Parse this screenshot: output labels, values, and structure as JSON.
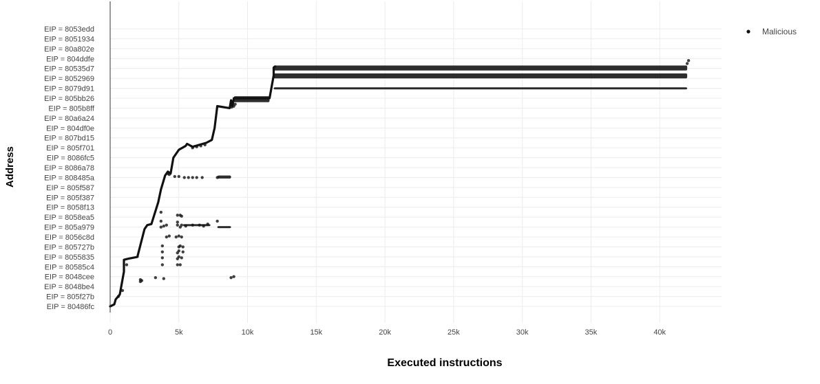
{
  "chart_data": {
    "type": "scatter",
    "title": "",
    "xlabel": "Executed instructions",
    "ylabel": "Address",
    "xlim": [
      0,
      44500
    ],
    "x_ticks": [
      0,
      5000,
      10000,
      15000,
      20000,
      25000,
      30000,
      35000,
      40000
    ],
    "x_tick_labels": [
      "0",
      "5k",
      "10k",
      "15k",
      "20k",
      "25k",
      "30k",
      "35k",
      "40k"
    ],
    "y_categories": [
      "EIP = 80486fc",
      "EIP = 805f27b",
      "EIP = 8048be4",
      "EIP = 8048cee",
      "EIP = 80585c4",
      "EIP = 8055835",
      "EIP = 805727b",
      "EIP = 8056c8d",
      "EIP = 805a979",
      "EIP = 8058ea5",
      "EIP = 8058f13",
      "EIP = 805f387",
      "EIP = 805f587",
      "EIP = 808485a",
      "EIP = 8086a78",
      "EIP = 8086fc5",
      "EIP = 805f701",
      "EIP = 807bd15",
      "EIP = 804df0e",
      "EIP = 80a6a24",
      "EIP = 805b8ff",
      "EIP = 805bb26",
      "EIP = 8079d91",
      "EIP = 8052969",
      "EIP = 80535d7",
      "EIP = 804ddfe",
      "EIP = 80a802e",
      "EIP = 8051934",
      "EIP = 8053edd"
    ],
    "grid": true,
    "legend_position": "top-right",
    "series": [
      {
        "name": "Malicious",
        "color": "#111111",
        "trace": [
          [
            0,
            0
          ],
          [
            300,
            0.2
          ],
          [
            400,
            0.7
          ],
          [
            700,
            1.2
          ],
          [
            1000,
            3.5
          ],
          [
            1000,
            4.7
          ],
          [
            1300,
            4.8
          ],
          [
            2000,
            5.0
          ],
          [
            2000,
            5.1
          ],
          [
            2500,
            7.8
          ],
          [
            2700,
            8.2
          ],
          [
            3000,
            8.3
          ],
          [
            3500,
            10.5
          ],
          [
            3700,
            11.8
          ],
          [
            4000,
            13.2
          ],
          [
            4200,
            13.6
          ],
          [
            4400,
            13.4
          ],
          [
            4600,
            15.0
          ],
          [
            5000,
            15.8
          ],
          [
            5500,
            16.2
          ],
          [
            5600,
            16.4
          ],
          [
            6000,
            16.1
          ],
          [
            7000,
            16.5
          ],
          [
            7400,
            16.8
          ],
          [
            7600,
            18.0
          ],
          [
            7800,
            20.2
          ],
          [
            8700,
            20.0
          ],
          [
            8800,
            20.8
          ],
          [
            8900,
            20.2
          ],
          [
            9000,
            21.0
          ],
          [
            11600,
            21.0
          ],
          [
            11900,
            23.3
          ],
          [
            11900,
            24.1
          ],
          [
            12000,
            24.2
          ]
        ],
        "bands": [
          {
            "x_start": 11900,
            "x_end": 42000,
            "y_from": 23.8,
            "y_to": 24.3
          },
          {
            "x_start": 11900,
            "x_end": 42000,
            "y_from": 23.0,
            "y_to": 23.5
          },
          {
            "x_start": 11900,
            "x_end": 42000,
            "y_from": 21.9,
            "y_to": 22.1
          },
          {
            "x_start": 9000,
            "x_end": 11600,
            "y_from": 20.6,
            "y_to": 21.2
          },
          {
            "x_start": 7800,
            "x_end": 8800,
            "y_from": 12.9,
            "y_to": 13.2
          },
          {
            "x_start": 5300,
            "x_end": 7300,
            "y_from": 8.2,
            "y_to": 8.3
          },
          {
            "x_start": 7800,
            "x_end": 8800,
            "y_from": 7.9,
            "y_to": 8.1
          }
        ],
        "points": [
          [
            8850,
            20.1
          ],
          [
            9000,
            20.2
          ],
          [
            9100,
            20.4
          ],
          [
            42000,
            24.5
          ],
          [
            42100,
            24.8
          ],
          [
            6000,
            16.0
          ],
          [
            6300,
            16.1
          ],
          [
            6600,
            16.2
          ],
          [
            6900,
            16.3
          ],
          [
            4300,
            13.3
          ],
          [
            4700,
            13.1
          ],
          [
            5000,
            13.1
          ],
          [
            5400,
            13.0
          ],
          [
            5700,
            13.0
          ],
          [
            6000,
            13.0
          ],
          [
            6300,
            13.0
          ],
          [
            6700,
            13.0
          ],
          [
            7800,
            13.0
          ],
          [
            4200,
            13.4
          ],
          [
            3700,
            9.5
          ],
          [
            4900,
            9.2
          ],
          [
            5100,
            9.2
          ],
          [
            5200,
            9.1
          ],
          [
            3700,
            8.6
          ],
          [
            4900,
            8.5
          ],
          [
            7800,
            8.6
          ],
          [
            3700,
            8.0
          ],
          [
            3900,
            8.1
          ],
          [
            4100,
            8.2
          ],
          [
            4900,
            8.2
          ],
          [
            5100,
            8.0
          ],
          [
            5200,
            8.2
          ],
          [
            5500,
            8.1
          ],
          [
            6000,
            8.2
          ],
          [
            6500,
            8.2
          ],
          [
            6800,
            8.1
          ],
          [
            7100,
            8.3
          ],
          [
            4100,
            7.0
          ],
          [
            4300,
            7.1
          ],
          [
            4800,
            7.0
          ],
          [
            5000,
            7.1
          ],
          [
            5200,
            7.0
          ],
          [
            3800,
            6.1
          ],
          [
            5000,
            6.0
          ],
          [
            5100,
            6.1
          ],
          [
            5300,
            6.0
          ],
          [
            3800,
            5.5
          ],
          [
            4900,
            5.4
          ],
          [
            5000,
            5.6
          ],
          [
            5300,
            5.5
          ],
          [
            3800,
            4.9
          ],
          [
            4900,
            4.8
          ],
          [
            5000,
            5.0
          ],
          [
            5200,
            4.9
          ],
          [
            3800,
            4.2
          ],
          [
            4900,
            4.2
          ],
          [
            5100,
            4.2
          ],
          [
            1200,
            4.2
          ],
          [
            2200,
            2.7
          ],
          [
            2200,
            2.5
          ],
          [
            2300,
            2.6
          ],
          [
            3300,
            2.9
          ],
          [
            3900,
            2.8
          ],
          [
            8800,
            2.9
          ],
          [
            9000,
            3.0
          ],
          [
            600,
            1.0
          ],
          [
            900,
            1.6
          ]
        ]
      }
    ]
  }
}
